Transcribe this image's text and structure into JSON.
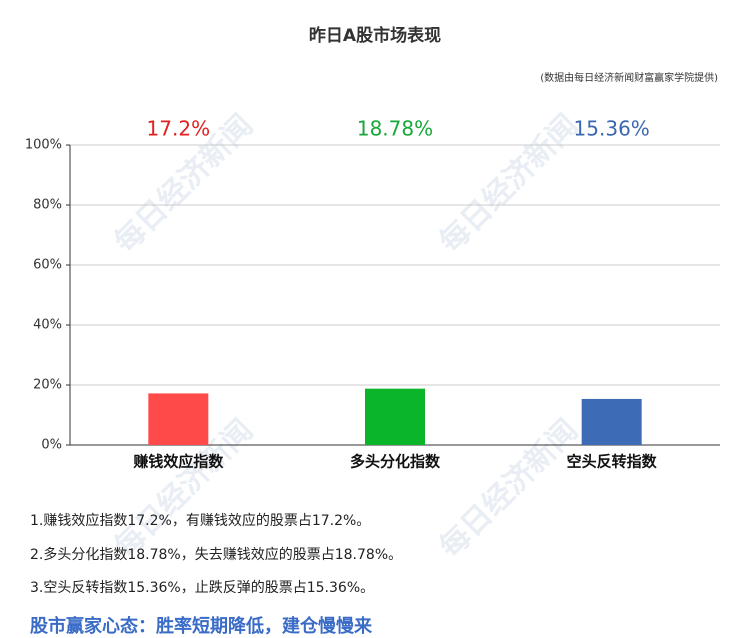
{
  "chart_data": {
    "type": "bar",
    "title": "昨日A股市场表现",
    "subtitle": "(数据由每日经济新闻财富赢家学院提供)",
    "categories": [
      "赚钱效应指数",
      "多头分化指数",
      "空头反转指数"
    ],
    "values": [
      17.2,
      18.78,
      15.36
    ],
    "value_labels": [
      "17.2%",
      "18.78%",
      "15.36%"
    ],
    "colors": [
      "#ff4a4a",
      "#0bb52a",
      "#3d6bb5"
    ],
    "label_colors": [
      "#e31e1e",
      "#18a83a",
      "#3a68b0"
    ],
    "ylim": [
      0,
      100
    ],
    "yticks": [
      {
        "value": 0,
        "label": "0%"
      },
      {
        "value": 20,
        "label": "20%"
      },
      {
        "value": 40,
        "label": "40%"
      },
      {
        "value": 60,
        "label": "60%"
      },
      {
        "value": 80,
        "label": "80%"
      },
      {
        "value": 100,
        "label": "100%"
      }
    ],
    "grid": true
  },
  "watermark": "每日经济新闻",
  "notes": [
    "1.赚钱效应指数17.2%，有赚钱效应的股票占17.2%。",
    "2.多头分化指数18.78%，失去赚钱效应的股票占18.78%。",
    "3.空头反转指数15.36%，止跌反弹的股票占15.36%。"
  ],
  "conclusion": "股市赢家心态：胜率短期降低，建仓慢慢来"
}
